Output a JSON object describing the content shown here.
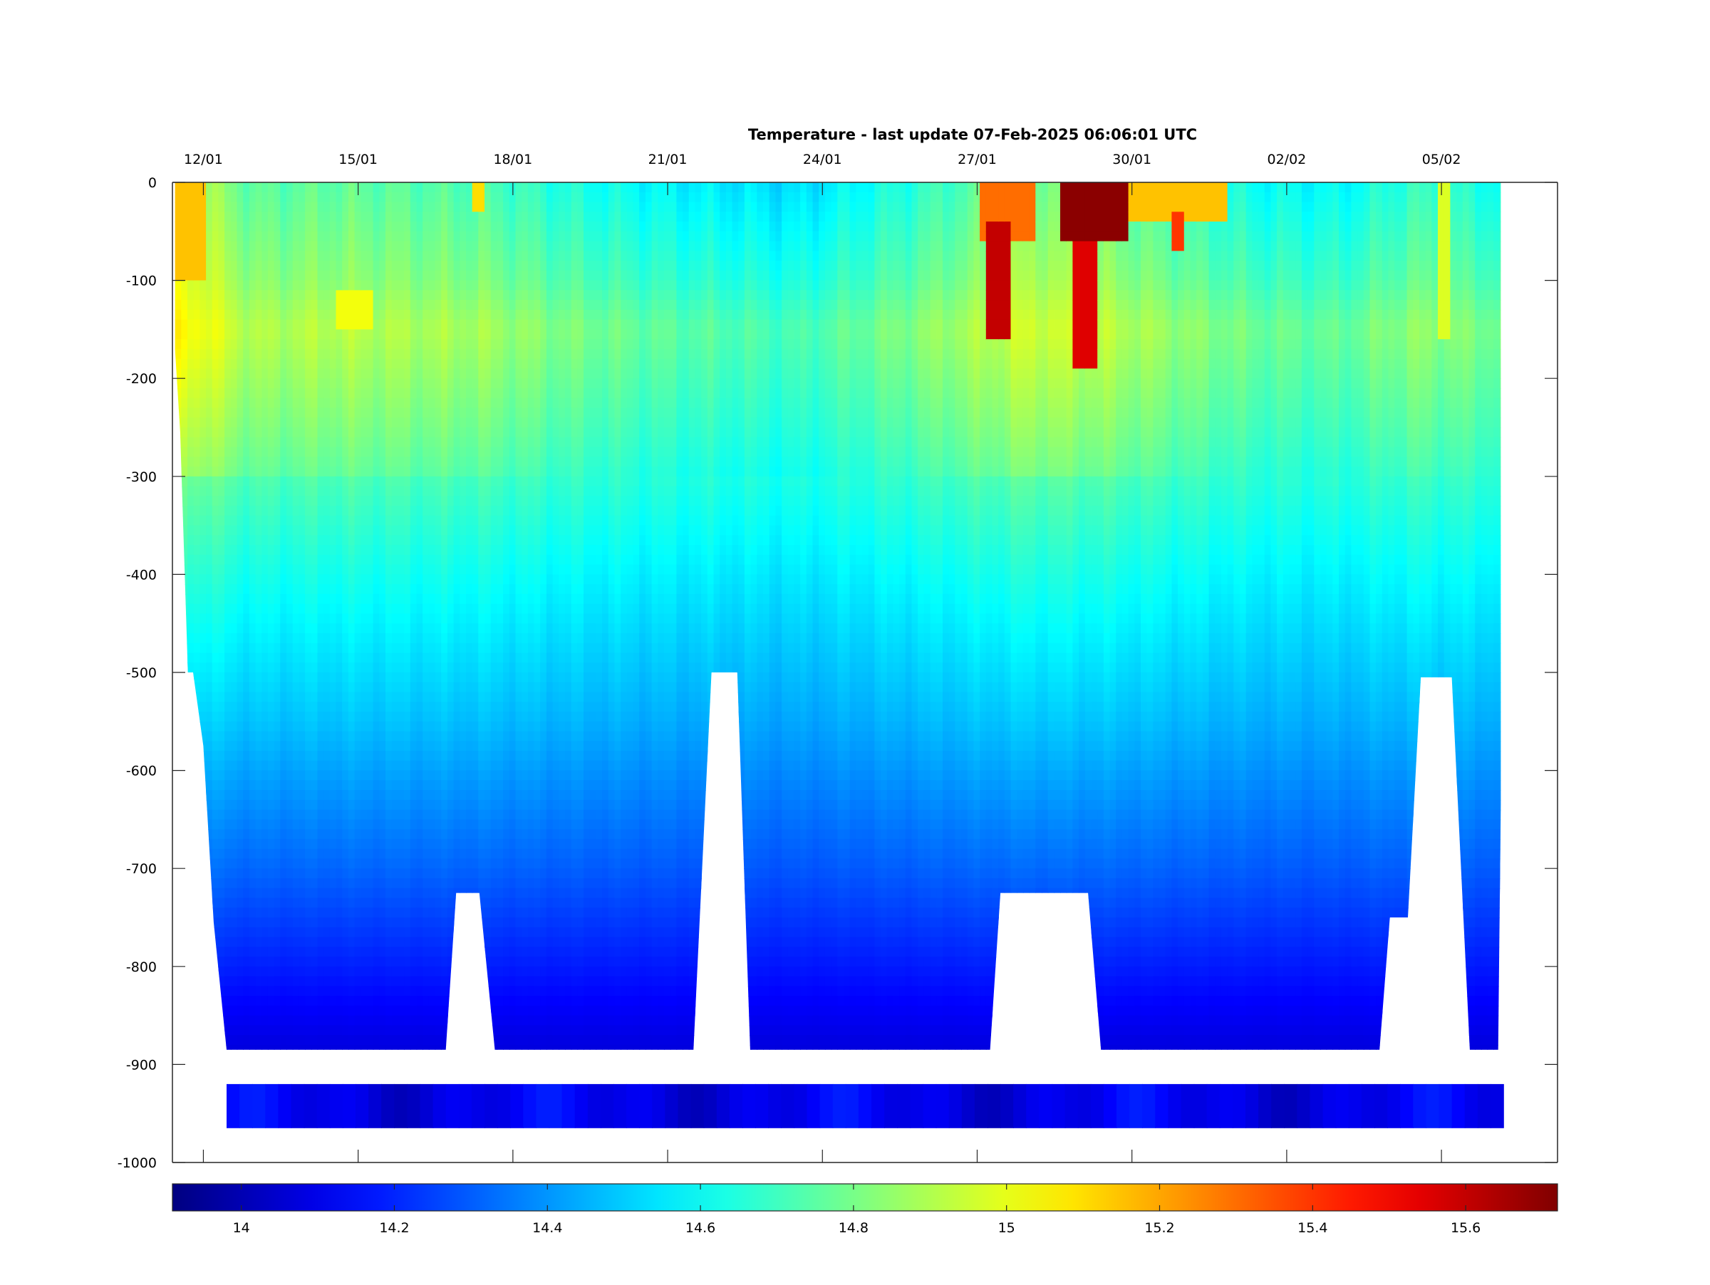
{
  "chart_data": {
    "type": "heatmap",
    "title": "Temperature - last update 07-Feb-2025 06:06:01 UTC",
    "xlabel": "",
    "ylabel": "",
    "x_tick_labels": [
      "12/01",
      "15/01",
      "18/01",
      "21/01",
      "24/01",
      "27/01",
      "30/01",
      "02/02",
      "05/02"
    ],
    "x_tick_days": [
      12,
      15,
      18,
      21,
      24,
      27,
      30,
      33,
      36
    ],
    "x_range_days": [
      11.4,
      38.25
    ],
    "ylim": [
      -1000,
      0
    ],
    "y_ticks": [
      0,
      -100,
      -200,
      -300,
      -400,
      -500,
      -600,
      -700,
      -800,
      -900,
      -1000
    ],
    "y_tick_labels": [
      "0",
      "-100",
      "-200",
      "-300",
      "-400",
      "-500",
      "-600",
      "-700",
      "-800",
      "-900",
      "-1000"
    ],
    "colorbar": {
      "colormap": "jet",
      "range": [
        13.91,
        15.72
      ],
      "ticks": [
        14,
        14.2,
        14.4,
        14.6,
        14.8,
        15,
        15.2,
        15.4,
        15.6
      ],
      "tick_labels": [
        "14",
        "14.2",
        "14.4",
        "14.6",
        "14.8",
        "15",
        "15.2",
        "15.4",
        "15.6"
      ]
    },
    "depth_profile_min": [
      [
        11.45,
        -170
      ],
      [
        11.55,
        -255
      ],
      [
        11.7,
        -500
      ],
      [
        11.8,
        -500
      ],
      [
        12.0,
        -575
      ],
      [
        12.2,
        -755
      ],
      [
        12.45,
        -885
      ],
      [
        16.7,
        -885
      ],
      [
        16.9,
        -725
      ],
      [
        17.35,
        -725
      ],
      [
        17.65,
        -885
      ],
      [
        21.5,
        -885
      ],
      [
        21.85,
        -500
      ],
      [
        22.35,
        -500
      ],
      [
        22.6,
        -885
      ],
      [
        27.25,
        -885
      ],
      [
        27.45,
        -725
      ],
      [
        29.15,
        -725
      ],
      [
        29.4,
        -885
      ],
      [
        34.8,
        -885
      ],
      [
        35.0,
        -750
      ],
      [
        35.35,
        -750
      ],
      [
        35.6,
        -505
      ],
      [
        36.2,
        -505
      ],
      [
        36.55,
        -885
      ],
      [
        37.1,
        -885
      ],
      [
        37.15,
        -635
      ]
    ],
    "deep_band": {
      "depth_top": -920,
      "depth_bottom": -965,
      "x_start": 12.45,
      "x_end": 37.1,
      "temp": 14.1
    },
    "temperature_by_depth": [
      {
        "depth": 0,
        "temp": 14.62
      },
      {
        "depth": -100,
        "temp": 14.72
      },
      {
        "depth": -150,
        "temp": 14.8
      },
      {
        "depth": -250,
        "temp": 14.72
      },
      {
        "depth": -400,
        "temp": 14.58
      },
      {
        "depth": -550,
        "temp": 14.45
      },
      {
        "depth": -700,
        "temp": 14.3
      },
      {
        "depth": -800,
        "temp": 14.18
      },
      {
        "depth": -880,
        "temp": 14.08
      }
    ],
    "temporal_anomalies": [
      {
        "day": 11.8,
        "anomaly": 0.3
      },
      {
        "day": 13.0,
        "anomaly": 0.12
      },
      {
        "day": 14.5,
        "anomaly": 0.14
      },
      {
        "day": 16.0,
        "anomaly": 0.12
      },
      {
        "day": 17.5,
        "anomaly": 0.1
      },
      {
        "day": 19.0,
        "anomaly": 0.02
      },
      {
        "day": 21.0,
        "anomaly": -0.05
      },
      {
        "day": 23.5,
        "anomaly": -0.1
      },
      {
        "day": 25.5,
        "anomaly": 0.02
      },
      {
        "day": 27.0,
        "anomaly": 0.12
      },
      {
        "day": 28.0,
        "anomaly": 0.2
      },
      {
        "day": 29.5,
        "anomaly": 0.15
      },
      {
        "day": 31.0,
        "anomaly": 0.06
      },
      {
        "day": 32.5,
        "anomaly": -0.02
      },
      {
        "day": 34.0,
        "anomaly": -0.04
      },
      {
        "day": 35.5,
        "anomaly": 0.06
      },
      {
        "day": 37.1,
        "anomaly": 0.0
      }
    ],
    "warm_features": [
      {
        "day_start": 11.45,
        "day_end": 12.0,
        "depth_top": 0,
        "depth_bottom": -95,
        "temp": 15.15
      },
      {
        "day_start": 14.6,
        "day_end": 15.3,
        "depth_top": -110,
        "depth_bottom": -145,
        "temp": 15.02
      },
      {
        "day_start": 17.2,
        "day_end": 17.5,
        "depth_top": 0,
        "depth_bottom": -30,
        "temp": 15.1
      },
      {
        "day_start": 27.0,
        "day_end": 28.1,
        "depth_top": 0,
        "depth_bottom": -60,
        "temp": 15.3
      },
      {
        "day_start": 27.2,
        "day_end": 27.6,
        "depth_top": -40,
        "depth_bottom": -160,
        "temp": 15.6
      },
      {
        "day_start": 28.6,
        "day_end": 29.9,
        "depth_top": 0,
        "depth_bottom": -60,
        "temp": 15.7
      },
      {
        "day_start": 28.8,
        "day_end": 29.3,
        "depth_top": -60,
        "depth_bottom": -190,
        "temp": 15.55
      },
      {
        "day_start": 29.9,
        "day_end": 31.8,
        "depth_top": 0,
        "depth_bottom": -35,
        "temp": 15.15
      },
      {
        "day_start": 30.8,
        "day_end": 31.0,
        "depth_top": -30,
        "depth_bottom": -65,
        "temp": 15.4
      },
      {
        "day_start": 35.9,
        "day_end": 36.2,
        "depth_top": 0,
        "depth_bottom": -160,
        "temp": 14.98
      }
    ],
    "grid": false,
    "legend": "none"
  },
  "colors": {
    "axis": "#262626",
    "background": "#ffffff"
  }
}
